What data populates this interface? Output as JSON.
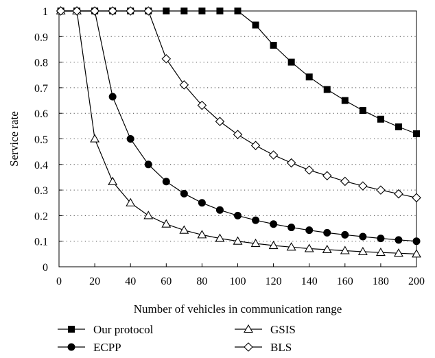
{
  "chart_data": {
    "type": "line",
    "title": "",
    "xlabel": "Number of vehicles in communication range",
    "ylabel": "Service rate",
    "xlim": [
      0,
      200
    ],
    "ylim": [
      0,
      1
    ],
    "xticks": [
      "0",
      "20",
      "40",
      "60",
      "80",
      "100",
      "120",
      "140",
      "160",
      "180",
      "200"
    ],
    "yticks": [
      "0",
      "0.1",
      "0.2",
      "0.3",
      "0.4",
      "0.5",
      "0.6",
      "0.7",
      "0.8",
      "0.9",
      "1"
    ],
    "grid": "dotted horizontal",
    "legend_position": "bottom",
    "x": [
      1,
      10,
      20,
      30,
      40,
      50,
      60,
      70,
      80,
      90,
      100,
      110,
      120,
      130,
      140,
      150,
      160,
      170,
      180,
      190,
      200
    ],
    "series": [
      {
        "name": "Our protocol",
        "marker": "filled-square",
        "values": [
          1,
          1,
          1,
          1,
          1,
          1,
          1,
          1,
          1,
          1,
          1,
          0.945,
          0.866,
          0.8,
          0.742,
          0.693,
          0.65,
          0.611,
          0.577,
          0.547,
          0.52
        ]
      },
      {
        "name": "ECPP",
        "marker": "filled-circle",
        "values": [
          1,
          1,
          1,
          0.665,
          0.5,
          0.4,
          0.333,
          0.286,
          0.25,
          0.222,
          0.2,
          0.182,
          0.167,
          0.154,
          0.143,
          0.133,
          0.125,
          0.118,
          0.111,
          0.105,
          0.1
        ]
      },
      {
        "name": "GSIS",
        "marker": "open-triangle",
        "values": [
          1,
          1,
          0.5,
          0.333,
          0.25,
          0.2,
          0.167,
          0.143,
          0.125,
          0.111,
          0.1,
          0.091,
          0.083,
          0.077,
          0.071,
          0.067,
          0.063,
          0.059,
          0.056,
          0.053,
          0.05
        ]
      },
      {
        "name": "BLS",
        "marker": "open-diamond",
        "values": [
          1,
          1,
          1,
          1,
          1,
          1,
          0.813,
          0.711,
          0.631,
          0.568,
          0.517,
          0.474,
          0.437,
          0.406,
          0.378,
          0.356,
          0.334,
          0.316,
          0.3,
          0.285,
          0.27
        ]
      }
    ]
  }
}
